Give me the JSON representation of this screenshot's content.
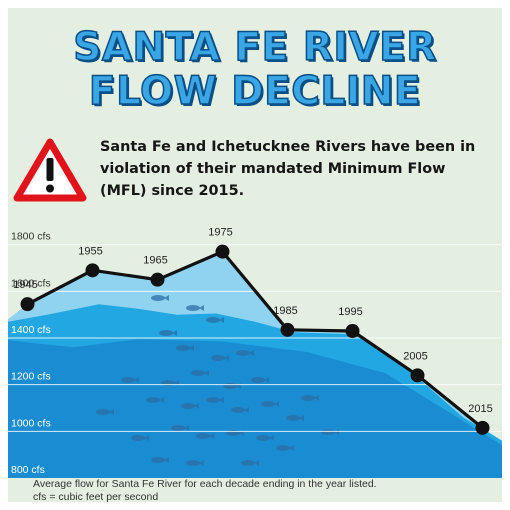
{
  "title_lines": [
    "SANTA FE RIVER",
    "FLOW DECLINE"
  ],
  "subtitle": "Santa Fe and Ichetucknee Rivers have been in violation of their mandated Minimum Flow (MFL) since 2015.",
  "icons": {
    "warning": "warning-triangle-icon"
  },
  "colors": {
    "background": "#e4efe1",
    "title_fill": "#3aa6e6",
    "title_outline": "#0a4f86",
    "warning_red": "#e2141b",
    "line": "#111111",
    "water_light": "#8fd3f0",
    "water_mid": "#23a7e2",
    "water_deep": "#1377c4",
    "fish": "#2b6ea6"
  },
  "chart_data": {
    "type": "line",
    "ylim": [
      800,
      1850
    ],
    "x_range": [
      1942,
      2018
    ],
    "yticks": [
      {
        "value": 800,
        "label": "800 cfs"
      },
      {
        "value": 1000,
        "label": "1000 cfs"
      },
      {
        "value": 1200,
        "label": "1200 cfs"
      },
      {
        "value": 1400,
        "label": "1400 cfs"
      },
      {
        "value": 1600,
        "label": "1600 cfs"
      },
      {
        "value": 1800,
        "label": "1800 cfs"
      }
    ],
    "points": [
      {
        "x": 1945,
        "label": "1945",
        "y": 1545
      },
      {
        "x": 1955,
        "label": "1955",
        "y": 1690
      },
      {
        "x": 1965,
        "label": "1965",
        "y": 1650
      },
      {
        "x": 1975,
        "label": "1975",
        "y": 1770
      },
      {
        "x": 1985,
        "label": "1985",
        "y": 1435
      },
      {
        "x": 1995,
        "label": "1995",
        "y": 1430
      },
      {
        "x": 2005,
        "label": "2005",
        "y": 1240
      },
      {
        "x": 2015,
        "label": "2015",
        "y": 1015
      }
    ],
    "grid": true
  },
  "footnote_lines": [
    "Average flow for Santa Fe River for each decade ending in the year listed.",
    "cfs = cubic feet per second"
  ]
}
